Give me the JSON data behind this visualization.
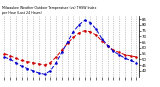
{
  "title": "Milwaukee Weather Outdoor Temperature (vs) THSW Index per Hour (Last 24 Hours)",
  "hours": [
    0,
    1,
    2,
    3,
    4,
    5,
    6,
    7,
    8,
    9,
    10,
    11,
    12,
    13,
    14,
    15,
    16,
    17,
    18,
    19,
    20,
    21,
    22,
    23
  ],
  "temp": [
    55,
    53,
    51,
    49,
    48,
    47,
    46,
    45,
    47,
    52,
    58,
    64,
    69,
    73,
    75,
    74,
    71,
    66,
    62,
    58,
    56,
    54,
    53,
    52
  ],
  "thsw": [
    52,
    50,
    47,
    44,
    42,
    40,
    38,
    37,
    40,
    47,
    56,
    65,
    74,
    80,
    84,
    82,
    76,
    68,
    62,
    57,
    54,
    51,
    49,
    47
  ],
  "temp_color": "#cc0000",
  "thsw_color": "#0000cc",
  "bg_color": "#ffffff",
  "grid_color": "#999999",
  "ylim_min": 35,
  "ylim_max": 88,
  "ytick_values": [
    40,
    45,
    50,
    55,
    60,
    65,
    70,
    75,
    80,
    85
  ],
  "ytick_labels": [
    "40",
    "45",
    "50",
    "55",
    "60",
    "65",
    "70",
    "75",
    "80",
    "85"
  ]
}
